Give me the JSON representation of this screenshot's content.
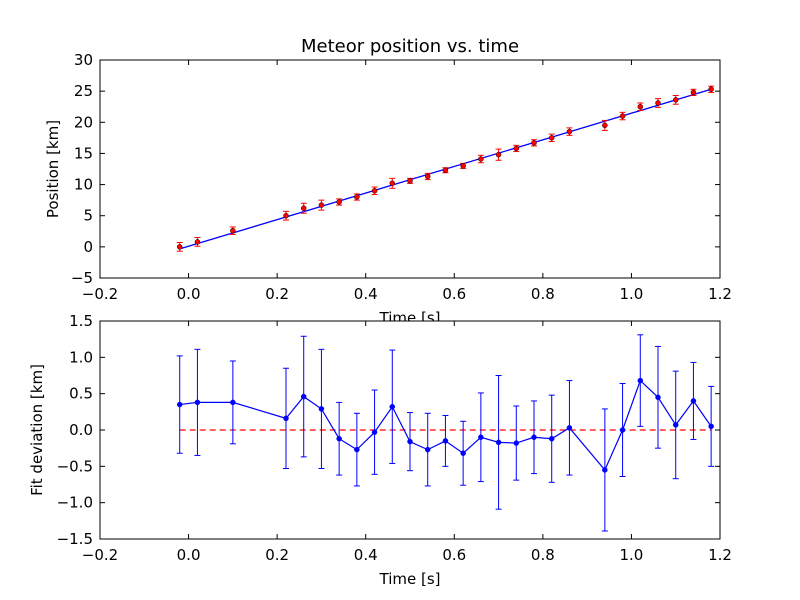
{
  "chart_data": [
    {
      "type": "scatter",
      "title": "Meteor position vs. time",
      "xlabel": "Time [s]",
      "ylabel": "Position [km]",
      "xlim": [
        -0.2,
        1.2
      ],
      "ylim": [
        -5,
        30
      ],
      "xticks": [
        "−0.2",
        "0.0",
        "0.2",
        "0.4",
        "0.6",
        "0.8",
        "1.0",
        "1.2"
      ],
      "yticks": [
        "−5",
        "0",
        "5",
        "10",
        "15",
        "20",
        "25",
        "30"
      ],
      "grid": false,
      "colors": {
        "points": "#ff0000",
        "errorbars": "#ff0000",
        "fit_line": "#0000ff"
      },
      "series": [
        {
          "points": [
            {
              "x": -0.02,
              "y": 0.0,
              "err": 0.7
            },
            {
              "x": 0.02,
              "y": 0.8,
              "err": 0.7
            },
            {
              "x": 0.1,
              "y": 2.6,
              "err": 0.6
            },
            {
              "x": 0.22,
              "y": 5.0,
              "err": 0.7
            },
            {
              "x": 0.26,
              "y": 6.2,
              "err": 0.8
            },
            {
              "x": 0.3,
              "y": 6.7,
              "err": 0.8
            },
            {
              "x": 0.34,
              "y": 7.2,
              "err": 0.5
            },
            {
              "x": 0.38,
              "y": 8.0,
              "err": 0.5
            },
            {
              "x": 0.42,
              "y": 9.0,
              "err": 0.6
            },
            {
              "x": 0.46,
              "y": 10.2,
              "err": 0.8
            },
            {
              "x": 0.5,
              "y": 10.6,
              "err": 0.4
            },
            {
              "x": 0.54,
              "y": 11.3,
              "err": 0.5
            },
            {
              "x": 0.58,
              "y": 12.3,
              "err": 0.4
            },
            {
              "x": 0.62,
              "y": 13.0,
              "err": 0.4
            },
            {
              "x": 0.66,
              "y": 14.1,
              "err": 0.6
            },
            {
              "x": 0.7,
              "y": 14.8,
              "err": 0.9
            },
            {
              "x": 0.74,
              "y": 15.8,
              "err": 0.5
            },
            {
              "x": 0.78,
              "y": 16.7,
              "err": 0.5
            },
            {
              "x": 0.82,
              "y": 17.5,
              "err": 0.6
            },
            {
              "x": 0.86,
              "y": 18.5,
              "err": 0.6
            },
            {
              "x": 0.94,
              "y": 19.5,
              "err": 0.8
            },
            {
              "x": 0.98,
              "y": 21.0,
              "err": 0.6
            },
            {
              "x": 1.02,
              "y": 22.5,
              "err": 0.6
            },
            {
              "x": 1.06,
              "y": 23.1,
              "err": 0.7
            },
            {
              "x": 1.1,
              "y": 23.6,
              "err": 0.7
            },
            {
              "x": 1.14,
              "y": 24.8,
              "err": 0.5
            },
            {
              "x": 1.18,
              "y": 25.3,
              "err": 0.5
            }
          ]
        }
      ],
      "fit_line": {
        "x": [
          -0.02,
          1.18
        ],
        "y": [
          -0.33,
          25.3
        ]
      }
    },
    {
      "type": "line",
      "title": "",
      "xlabel": "Time [s]",
      "ylabel": "Fit deviation [km]",
      "xlim": [
        -0.2,
        1.2
      ],
      "ylim": [
        -1.5,
        1.5
      ],
      "xticks": [
        "−0.2",
        "0.0",
        "0.2",
        "0.4",
        "0.6",
        "0.8",
        "1.0",
        "1.2"
      ],
      "yticks": [
        "−1.5",
        "−1.0",
        "−0.5",
        "0.0",
        "0.5",
        "1.0",
        "1.5"
      ],
      "grid": false,
      "colors": {
        "series": "#0000ff",
        "zero_line": "#ff0000"
      },
      "zero_line": 0,
      "series": [
        {
          "points": [
            {
              "x": -0.02,
              "y": 0.35,
              "err": 0.67
            },
            {
              "x": 0.02,
              "y": 0.38,
              "err": 0.73
            },
            {
              "x": 0.1,
              "y": 0.38,
              "err": 0.57
            },
            {
              "x": 0.22,
              "y": 0.16,
              "err": 0.69
            },
            {
              "x": 0.26,
              "y": 0.46,
              "err": 0.83
            },
            {
              "x": 0.3,
              "y": 0.29,
              "err": 0.82
            },
            {
              "x": 0.34,
              "y": -0.12,
              "err": 0.5
            },
            {
              "x": 0.38,
              "y": -0.27,
              "err": 0.5
            },
            {
              "x": 0.42,
              "y": -0.03,
              "err": 0.58
            },
            {
              "x": 0.46,
              "y": 0.32,
              "err": 0.78
            },
            {
              "x": 0.5,
              "y": -0.16,
              "err": 0.4
            },
            {
              "x": 0.54,
              "y": -0.27,
              "err": 0.5
            },
            {
              "x": 0.58,
              "y": -0.15,
              "err": 0.35
            },
            {
              "x": 0.62,
              "y": -0.32,
              "err": 0.44
            },
            {
              "x": 0.66,
              "y": -0.1,
              "err": 0.61
            },
            {
              "x": 0.7,
              "y": -0.17,
              "err": 0.92
            },
            {
              "x": 0.74,
              "y": -0.18,
              "err": 0.51
            },
            {
              "x": 0.78,
              "y": -0.1,
              "err": 0.5
            },
            {
              "x": 0.82,
              "y": -0.12,
              "err": 0.6
            },
            {
              "x": 0.86,
              "y": 0.03,
              "err": 0.65
            },
            {
              "x": 0.94,
              "y": -0.55,
              "err": 0.84
            },
            {
              "x": 0.98,
              "y": 0.0,
              "err": 0.64
            },
            {
              "x": 1.02,
              "y": 0.68,
              "err": 0.63
            },
            {
              "x": 1.06,
              "y": 0.45,
              "err": 0.7
            },
            {
              "x": 1.1,
              "y": 0.07,
              "err": 0.74
            },
            {
              "x": 1.14,
              "y": 0.4,
              "err": 0.53
            },
            {
              "x": 1.18,
              "y": 0.05,
              "err": 0.55
            }
          ]
        }
      ]
    }
  ]
}
